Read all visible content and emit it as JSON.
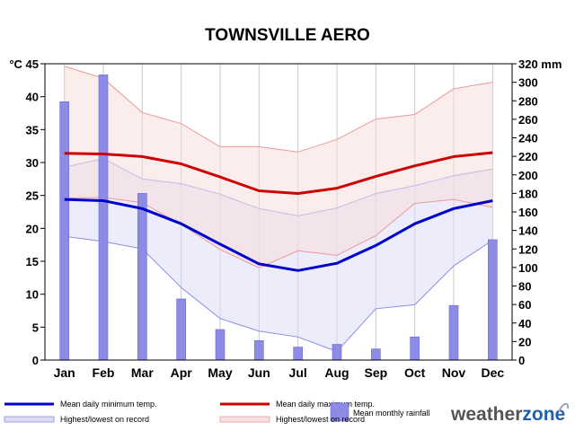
{
  "chart_data": {
    "type": "climate-chart",
    "title": "TOWNSVILLE AERO",
    "left_axis": {
      "unit": "°C",
      "ylim": [
        0,
        45
      ],
      "ticks": [
        0,
        5,
        10,
        15,
        20,
        25,
        30,
        35,
        40,
        45
      ],
      "tick_labels": [
        "0",
        "5",
        "10",
        "15",
        "20",
        "25",
        "30",
        "35",
        "40",
        "°C 45"
      ]
    },
    "right_axis": {
      "unit": "mm",
      "ylim": [
        0,
        320
      ],
      "ticks": [
        0,
        20,
        40,
        60,
        80,
        100,
        120,
        140,
        160,
        180,
        200,
        220,
        240,
        260,
        280,
        300,
        320
      ],
      "tick_labels": [
        "0",
        "20",
        "40",
        "60",
        "80",
        "100",
        "120",
        "140",
        "160",
        "180",
        "200",
        "220",
        "240",
        "260",
        "280",
        "300",
        "320 mm"
      ]
    },
    "categories": [
      "Jan",
      "Feb",
      "Mar",
      "Apr",
      "May",
      "Jun",
      "Jul",
      "Aug",
      "Sep",
      "Oct",
      "Nov",
      "Dec"
    ],
    "grid": "vertical",
    "series": [
      {
        "name": "Mean daily minimum temp.",
        "kind": "line",
        "axis": "left",
        "color": "#0000cc",
        "values": [
          24.4,
          24.2,
          23.0,
          20.7,
          17.6,
          14.6,
          13.6,
          14.7,
          17.4,
          20.7,
          23.0,
          24.2
        ]
      },
      {
        "name": "Mean daily maximum temp.",
        "kind": "line",
        "axis": "left",
        "color": "#cc0000",
        "values": [
          31.4,
          31.3,
          30.9,
          29.8,
          27.8,
          25.7,
          25.3,
          26.1,
          27.9,
          29.5,
          30.9,
          31.5
        ]
      },
      {
        "name": "Highest/lowest on record",
        "kind": "band",
        "axis": "left",
        "for": "minimum",
        "fill": "#dcdcf5",
        "stroke": "#8c8ce6",
        "high": [
          29.3,
          30.6,
          27.5,
          26.8,
          25.2,
          23.0,
          21.9,
          23.1,
          25.3,
          26.5,
          28.0,
          29.0
        ],
        "low": [
          18.8,
          18.0,
          16.9,
          11.0,
          6.3,
          4.4,
          3.5,
          1.3,
          7.8,
          8.4,
          14.3,
          18.2
        ]
      },
      {
        "name": "Highest/lowest on record",
        "kind": "band",
        "axis": "left",
        "for": "maximum",
        "fill": "#f9dede",
        "stroke": "#e89a9a",
        "high": [
          44.6,
          42.8,
          37.6,
          35.9,
          32.4,
          32.4,
          31.6,
          33.5,
          36.6,
          37.3,
          41.2,
          42.2
        ],
        "low": [
          24.6,
          24.7,
          23.9,
          20.6,
          16.8,
          14.0,
          16.6,
          15.9,
          18.9,
          23.8,
          24.4,
          23.2
        ]
      },
      {
        "name": "Mean monthly rainfall",
        "kind": "bar",
        "axis": "right",
        "color": "#8c8ce6",
        "values": [
          279,
          308,
          180,
          66,
          33,
          21,
          14,
          17,
          12,
          25,
          59,
          130
        ]
      }
    ],
    "legend": {
      "position": "bottom",
      "items": [
        {
          "label": "Mean daily minimum temp.",
          "kind": "line",
          "color": "#0000cc"
        },
        {
          "label": "Mean daily maximum temp.",
          "kind": "line",
          "color": "#cc0000"
        },
        {
          "label": "Mean monthly rainfall",
          "kind": "bar",
          "color": "#8c8ce6"
        },
        {
          "label": "Highest/lowest on record",
          "kind": "band",
          "fill": "#dcdcf5",
          "stroke": "#8c8ce6"
        },
        {
          "label": "Highest/lowest on record",
          "kind": "band",
          "fill": "#f9dede",
          "stroke": "#e89a9a"
        }
      ]
    },
    "logo": {
      "text_a": "weather",
      "text_b": "zone",
      "color_a": "#555555",
      "color_b": "#1f5fae"
    }
  }
}
